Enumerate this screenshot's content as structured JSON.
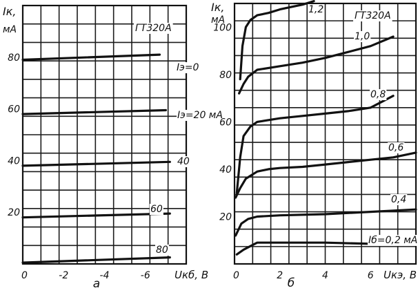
{
  "chart_data": [
    {
      "type": "line",
      "panel_letter": "а",
      "device_label": "ГТ320А",
      "ylabel_symbol": "Iк,",
      "ylabel_unit": "мА",
      "xlabel": "Uкб, В",
      "xlim": [
        0,
        -8
      ],
      "ylim": [
        0,
        100
      ],
      "x_ticks": [
        "0",
        "-2",
        "-4",
        "-6"
      ],
      "y_ticks": [
        "20",
        "40",
        "60",
        "80"
      ],
      "series": [
        {
          "name": "Iэ=0",
          "label_display": "Iэ=0",
          "x": [
            0,
            -7.2
          ],
          "y": [
            0.5,
            2.5
          ]
        },
        {
          "name": "Iэ=20 мА",
          "label_display": "Iэ=20 мА",
          "x": [
            0,
            -7.2
          ],
          "y": [
            18,
            19.5
          ]
        },
        {
          "name": "40",
          "label_display": "40",
          "x": [
            0,
            -7.2
          ],
          "y": [
            38,
            39.5
          ]
        },
        {
          "name": "60",
          "label_display": "60",
          "x": [
            0,
            -7.0
          ],
          "y": [
            58,
            59.5
          ]
        },
        {
          "name": "80",
          "label_display": "80",
          "x": [
            0,
            -6.7
          ],
          "y": [
            79,
            81
          ]
        }
      ]
    },
    {
      "type": "line",
      "panel_letter": "б",
      "device_label": "ГТ320А",
      "ylabel_symbol": "Iк,",
      "ylabel_unit": "мА",
      "xlabel": "Uкэ, В",
      "xlim": [
        0,
        8
      ],
      "ylim": [
        0,
        110
      ],
      "x_ticks": [
        "0",
        "2",
        "4",
        "6"
      ],
      "y_ticks": [
        "20",
        "40",
        "60",
        "80",
        "100"
      ],
      "series": [
        {
          "name": "0,2 мА",
          "label_display": "Iб=0,2 мА",
          "x": [
            0.1,
            0.4,
            0.8,
            1.0,
            2.0,
            4.0,
            6.0,
            8.0
          ],
          "y": [
            4,
            6,
            8,
            9,
            9,
            9,
            8.5,
            8.5
          ]
        },
        {
          "name": "0,4",
          "label_display": "0,4",
          "x": [
            0.05,
            0.3,
            0.6,
            1.0,
            2.0,
            4.0,
            6.0,
            8.0
          ],
          "y": [
            12,
            17,
            19,
            20,
            20.5,
            21,
            22,
            23
          ]
        },
        {
          "name": "0,6",
          "label_display": "0,6",
          "x": [
            0.05,
            0.25,
            0.5,
            1.0,
            1.5,
            2.0,
            3.0,
            4.0,
            5.0,
            6.0,
            7.0,
            8.0
          ],
          "y": [
            28,
            32,
            36,
            39,
            40,
            40.5,
            41,
            42,
            43,
            44,
            45,
            47
          ]
        },
        {
          "name": "0,8",
          "label_display": "0,8",
          "x": [
            0.1,
            0.25,
            0.4,
            0.7,
            1.0,
            2.0,
            3.0,
            4.0,
            5.0,
            6.0,
            7.0
          ],
          "y": [
            30,
            45,
            54,
            58,
            60,
            61.5,
            62.5,
            63.5,
            64.5,
            66,
            71
          ]
        },
        {
          "name": "1,0",
          "label_display": "1,0",
          "x": [
            0.2,
            0.4,
            0.6,
            1.0,
            2.0,
            3.0,
            4.0,
            5.0,
            6.0,
            7.0
          ],
          "y": [
            72,
            76,
            79,
            82,
            83.5,
            85,
            87,
            89.5,
            92,
            96
          ]
        },
        {
          "name": "1,2",
          "label_display": "1,2",
          "x": [
            0.25,
            0.35,
            0.5,
            0.7,
            1.0,
            1.5,
            2.0,
            2.5,
            3.0,
            3.5
          ],
          "y": [
            78,
            92,
            100,
            103,
            105,
            106,
            107.5,
            108.5,
            109.5,
            111
          ]
        }
      ]
    }
  ]
}
